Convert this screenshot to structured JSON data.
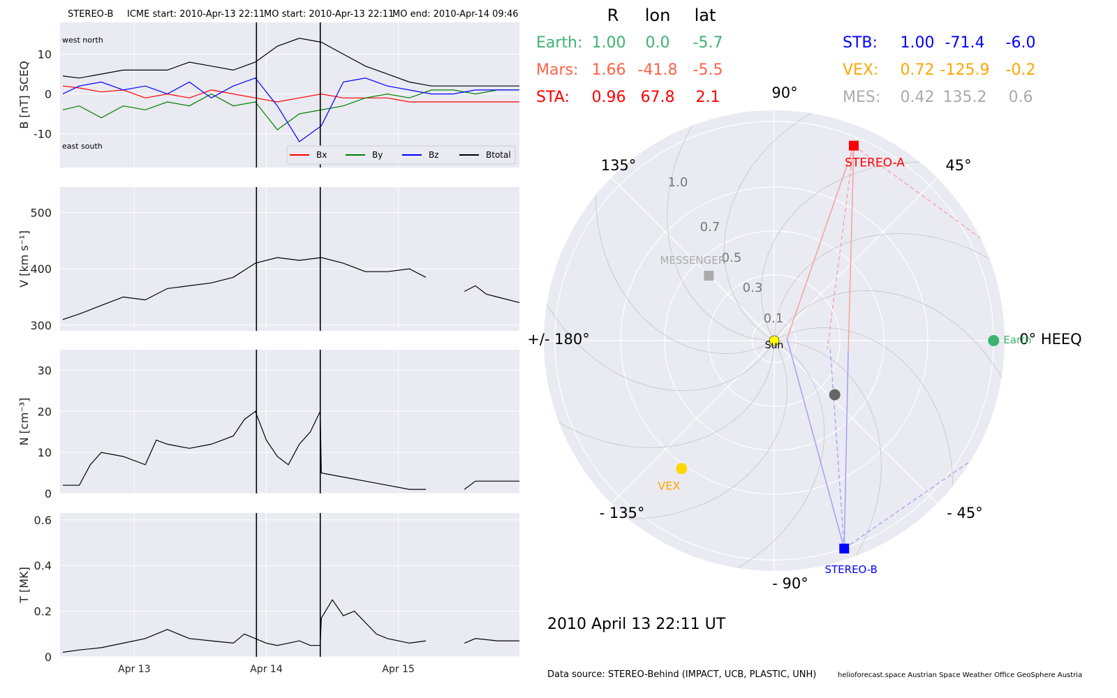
{
  "header": {
    "spacecraft": "STEREO-B",
    "icme_start": "ICME start: 2010-Apr-13 22:11",
    "mo_start": "MO start: 2010-Apr-13 22:11",
    "mo_end": "MO end: 2010-Apr-14 09:46"
  },
  "timeseries": {
    "x_ticks": [
      "Apr 13",
      "Apr 14",
      "Apr 15"
    ],
    "x_tick_hours": [
      24,
      48,
      72
    ],
    "x_range_hours": [
      10.5,
      94
    ],
    "event_lines_hours": [
      46.2,
      57.8
    ],
    "panels": [
      {
        "id": "B",
        "ylabel": "B [nT] SCEQ",
        "ylim": [
          -18.5,
          18
        ],
        "yticks": [
          -10,
          0,
          10
        ],
        "corner_top": "west    north",
        "corner_bottom": "east    south",
        "legend": [
          "Bx",
          "By",
          "Bz",
          "Btotal"
        ],
        "series": [
          {
            "name": "Bx",
            "color": "#ff0000",
            "x": [
              11,
              14,
              18,
              22,
              26,
              30,
              34,
              38,
              42,
              46,
              50,
              54,
              58,
              62,
              66,
              70,
              74,
              78,
              82,
              86,
              90,
              94
            ],
            "y": [
              2,
              1.5,
              0.5,
              1,
              -1,
              0,
              -1,
              1,
              0,
              -1,
              -2,
              -1,
              0,
              -1,
              -1,
              -1,
              -2,
              -2,
              -2,
              -2,
              -2,
              -2
            ]
          },
          {
            "name": "By",
            "color": "#008000",
            "x": [
              11,
              14,
              18,
              22,
              26,
              30,
              34,
              38,
              42,
              46,
              50,
              54,
              58,
              62,
              66,
              70,
              74,
              78,
              82,
              86,
              90,
              94
            ],
            "y": [
              -4,
              -3,
              -6,
              -3,
              -4,
              -2,
              -3,
              0,
              -3,
              -2,
              -9,
              -5,
              -4,
              -3,
              -1,
              0,
              -1,
              1,
              1,
              0,
              1,
              1
            ]
          },
          {
            "name": "Bz",
            "color": "#0000ff",
            "x": [
              11,
              14,
              18,
              22,
              26,
              30,
              34,
              38,
              42,
              46,
              50,
              54,
              58,
              62,
              66,
              70,
              74,
              78,
              82,
              86,
              90,
              94
            ],
            "y": [
              0,
              2,
              3,
              1,
              2,
              0,
              3,
              -1,
              2,
              4,
              -3,
              -12,
              -8,
              3,
              4,
              2,
              1,
              0,
              0,
              1,
              1,
              1
            ]
          },
          {
            "name": "Btotal",
            "color": "#000000",
            "x": [
              11,
              14,
              18,
              22,
              26,
              30,
              34,
              38,
              42,
              46,
              50,
              54,
              58,
              62,
              66,
              70,
              74,
              78,
              82,
              86,
              90,
              94
            ],
            "y": [
              4.5,
              4,
              5,
              6,
              6,
              6,
              8,
              7,
              6,
              8,
              12,
              14,
              13,
              10,
              7,
              5,
              3,
              2,
              2,
              2,
              2,
              2
            ]
          }
        ]
      },
      {
        "id": "V",
        "ylabel": "V [km s⁻¹]",
        "ylim": [
          290,
          545
        ],
        "yticks": [
          300,
          400,
          500
        ],
        "series": [
          {
            "name": "V",
            "color": "#000000",
            "segments": [
              {
                "x": [
                  11,
                  14,
                  18,
                  22,
                  26,
                  30,
                  34,
                  38,
                  42,
                  46,
                  50,
                  54,
                  58,
                  62,
                  66,
                  70,
                  74,
                  77
                ],
                "y": [
                  310,
                  320,
                  335,
                  350,
                  345,
                  365,
                  370,
                  375,
                  385,
                  410,
                  420,
                  415,
                  420,
                  410,
                  395,
                  395,
                  400,
                  385
                ]
              },
              {
                "x": [
                  84,
                  86,
                  88,
                  90,
                  94
                ],
                "y": [
                  360,
                  370,
                  355,
                  350,
                  340
                ]
              }
            ]
          }
        ]
      },
      {
        "id": "N",
        "ylabel": "N [cm⁻³]",
        "ylim": [
          0,
          35
        ],
        "yticks": [
          0,
          10,
          20,
          30
        ],
        "series": [
          {
            "name": "N",
            "color": "#000000",
            "segments": [
              {
                "x": [
                  11,
                  14,
                  16,
                  18,
                  22,
                  26,
                  28,
                  30,
                  34,
                  38,
                  42,
                  44,
                  46,
                  48,
                  50,
                  52,
                  54,
                  56,
                  57.8,
                  58,
                  62,
                  66,
                  70,
                  74,
                  77
                ],
                "y": [
                  2,
                  2,
                  7,
                  10,
                  9,
                  7,
                  13,
                  12,
                  11,
                  12,
                  14,
                  18,
                  20,
                  13,
                  9,
                  7,
                  12,
                  15,
                  20,
                  5,
                  4,
                  3,
                  2,
                  1,
                  1
                ]
              },
              {
                "x": [
                  84,
                  86,
                  90,
                  94
                ],
                "y": [
                  1,
                  3,
                  3,
                  3
                ]
              }
            ]
          }
        ]
      },
      {
        "id": "T",
        "ylabel": "T [MK]",
        "ylim": [
          0,
          0.63
        ],
        "yticks": [
          0.0,
          0.2,
          0.4,
          0.6
        ],
        "series": [
          {
            "name": "T",
            "color": "#000000",
            "segments": [
              {
                "x": [
                  11,
                  14,
                  18,
                  22,
                  26,
                  30,
                  34,
                  38,
                  42,
                  44,
                  46,
                  48,
                  50,
                  52,
                  54,
                  56,
                  57.8,
                  58,
                  60,
                  62,
                  64,
                  66,
                  68,
                  70,
                  74,
                  77
                ],
                "y": [
                  0.02,
                  0.03,
                  0.04,
                  0.06,
                  0.08,
                  0.12,
                  0.08,
                  0.07,
                  0.06,
                  0.1,
                  0.08,
                  0.06,
                  0.05,
                  0.06,
                  0.07,
                  0.05,
                  0.05,
                  0.17,
                  0.25,
                  0.18,
                  0.2,
                  0.15,
                  0.1,
                  0.08,
                  0.06,
                  0.07
                ]
              },
              {
                "x": [
                  84,
                  86,
                  90,
                  94
                ],
                "y": [
                  0.06,
                  0.08,
                  0.07,
                  0.07
                ]
              }
            ]
          }
        ]
      }
    ]
  },
  "table": {
    "headers": [
      "R",
      "lon",
      "lat"
    ],
    "left": [
      {
        "label": "Earth:",
        "R": "1.00",
        "lon": "0.0",
        "lat": "-5.7",
        "color": "#3cb371"
      },
      {
        "label": "Mars:",
        "R": "1.66",
        "lon": "-41.8",
        "lat": "-5.5",
        "color": "#ff6347"
      },
      {
        "label": "STA:",
        "R": "0.96",
        "lon": "67.8",
        "lat": "2.1",
        "color": "#ff0000"
      }
    ],
    "right": [
      {
        "label": "STB:",
        "R": "1.00",
        "lon": "-71.4",
        "lat": "-6.0",
        "color": "#0000ff"
      },
      {
        "label": "VEX:",
        "R": "0.72",
        "lon": "-125.9",
        "lat": "-0.2",
        "color": "#ffa500"
      },
      {
        "label": "MES:",
        "R": "0.42",
        "lon": "135.2",
        "lat": "0.6",
        "color": "#aaaaaa"
      }
    ]
  },
  "chart_data": {
    "type": "scatter",
    "projection": "polar",
    "r_max": 1.05,
    "r_rings": [
      0.1,
      0.3,
      0.5,
      0.7,
      1.0
    ],
    "r_labels": [
      "0.1",
      "0.3",
      "0.5",
      "0.7",
      "1.0"
    ],
    "angle_labels": [
      {
        "deg": 0,
        "text": "0° HEEQ"
      },
      {
        "deg": 45,
        "text": "45°"
      },
      {
        "deg": 90,
        "text": "90°"
      },
      {
        "deg": 135,
        "text": "135°"
      },
      {
        "deg": 180,
        "text": "+/- 180°"
      },
      {
        "deg": -135,
        "text": "- 135°"
      },
      {
        "deg": -90,
        "text": "- 90°"
      },
      {
        "deg": -45,
        "text": "- 45°"
      }
    ],
    "bodies": [
      {
        "name": "Sun",
        "r": 0.0,
        "lon": 0.0,
        "color": "#ffff00",
        "shape": "circle"
      },
      {
        "name": "Earth",
        "r": 1.0,
        "lon": 0.0,
        "color": "#3cb371",
        "shape": "circle"
      },
      {
        "name": "STEREO-A",
        "r": 0.96,
        "lon": 67.8,
        "color": "#ff0000",
        "shape": "square"
      },
      {
        "name": "STEREO-B",
        "r": 1.0,
        "lon": -71.4,
        "color": "#0000ff",
        "shape": "square"
      },
      {
        "name": "VEX",
        "r": 0.72,
        "lon": -125.9,
        "color": "#ffd700",
        "shape": "circle"
      },
      {
        "name": "MESSENGER",
        "r": 0.42,
        "lon": 135.2,
        "color": "#aaaaaa",
        "shape": "square"
      },
      {
        "name": "",
        "r": 0.37,
        "lon": -41.8,
        "color": "#666666",
        "shape": "circle"
      }
    ],
    "date_label": "2010 April 13  22:11 UT"
  },
  "footer": {
    "source": "Data source: STEREO-Behind (IMPACT, UCB, PLASTIC, UNH)",
    "credits": "helioforecast.space   Austrian Space Weather Office   GeoSphere Austria"
  }
}
